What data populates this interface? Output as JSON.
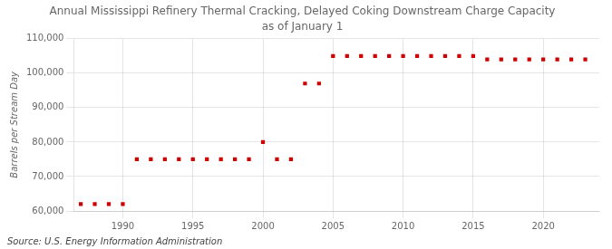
{
  "chart_data": {
    "type": "scatter",
    "title": "Annual Mississippi Refinery Thermal Cracking, Delayed Coking Downstream Charge Capacity",
    "subtitle": "as of January 1",
    "ylabel": "Barrels per Stream Day",
    "annotation": "Source: U.S. Energy Information Administration",
    "x": [
      1987,
      1988,
      1989,
      1990,
      1991,
      1992,
      1993,
      1994,
      1995,
      1996,
      1997,
      1998,
      1999,
      2000,
      2001,
      2002,
      2003,
      2004,
      2005,
      2006,
      2007,
      2008,
      2009,
      2010,
      2011,
      2012,
      2013,
      2014,
      2015,
      2016,
      2017,
      2018,
      2019,
      2020,
      2021,
      2022,
      2023
    ],
    "values": [
      62000,
      62000,
      62000,
      62000,
      75000,
      75000,
      75000,
      75000,
      75000,
      75000,
      75000,
      75000,
      75000,
      80000,
      75000,
      75000,
      97000,
      97000,
      105000,
      105000,
      105000,
      105000,
      105000,
      105000,
      105000,
      105000,
      105000,
      105000,
      105000,
      104000,
      104000,
      104000,
      104000,
      104000,
      104000,
      104000,
      104000
    ],
    "color": "#cc0000",
    "marker": "square",
    "xlim": [
      1986.5,
      2024
    ],
    "xticks": [
      1990,
      1995,
      2000,
      2005,
      2010,
      2015,
      2020
    ],
    "ylim": [
      60000,
      110000
    ],
    "yticks": [
      {
        "value": 60000,
        "label": "60,000"
      },
      {
        "value": 70000,
        "label": "70,000"
      },
      {
        "value": 80000,
        "label": "80,000"
      },
      {
        "value": 90000,
        "label": "90,000"
      },
      {
        "value": 100000,
        "label": "100,000"
      },
      {
        "value": 110000,
        "label": "110,000"
      }
    ],
    "grid": true
  }
}
